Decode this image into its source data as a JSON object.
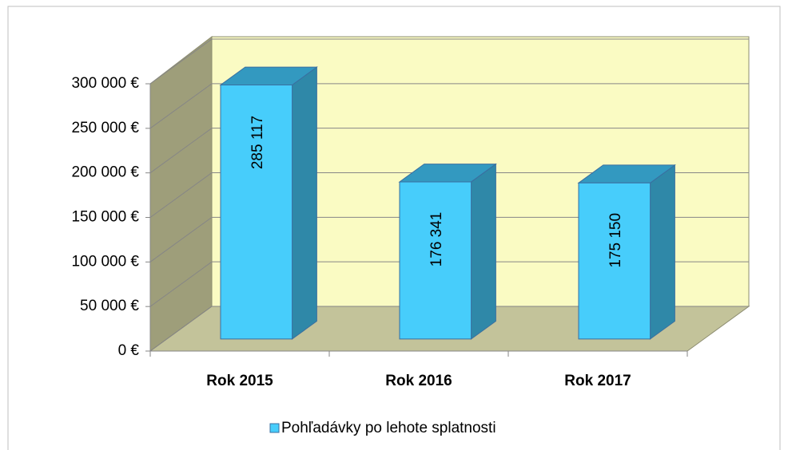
{
  "chart_data": {
    "type": "bar3d",
    "categories": [
      "Rok 2015",
      "Rok 2016",
      "Rok 2017"
    ],
    "series": [
      {
        "name": "Pohľadávky po lehote splatnosti",
        "color": "#47cdfb",
        "values": [
          285117,
          176341,
          175150
        ],
        "value_labels": [
          "285 117",
          "176 341",
          "175 150"
        ]
      }
    ],
    "ylim": [
      0,
      300000
    ],
    "yticks": [
      {
        "value": 0,
        "label": "0 €"
      },
      {
        "value": 50000,
        "label": "50 000 €"
      },
      {
        "value": 100000,
        "label": "100 000 €"
      },
      {
        "value": 150000,
        "label": "150 000 €"
      },
      {
        "value": 200000,
        "label": "200 000 €"
      },
      {
        "value": 250000,
        "label": "250 000 €"
      },
      {
        "value": 300000,
        "label": "300 000 €"
      }
    ],
    "grid": true,
    "legend": "bottom"
  }
}
